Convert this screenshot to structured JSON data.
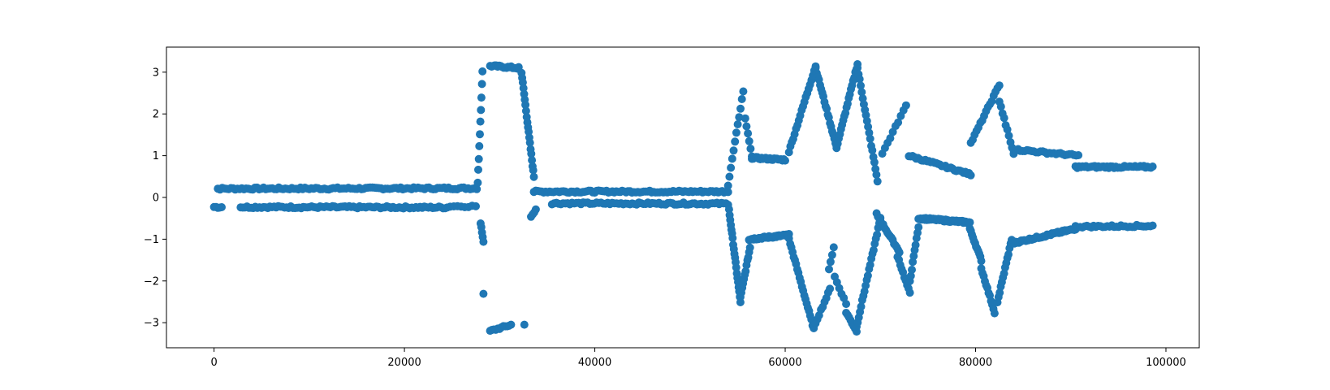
{
  "chart_data": {
    "type": "scatter",
    "title": "",
    "xlabel": "",
    "ylabel": "",
    "xlim": [
      -5000,
      103500
    ],
    "ylim": [
      -3.6,
      3.6
    ],
    "xticks": [
      0,
      20000,
      40000,
      60000,
      80000,
      100000
    ],
    "xtick_labels": [
      "0",
      "20000",
      "40000",
      "60000",
      "80000",
      "100000"
    ],
    "yticks": [
      3,
      2,
      1,
      0,
      -1,
      -2,
      -3
    ],
    "ytick_labels": [
      "3",
      "2",
      "1",
      "0",
      "−1",
      "−2",
      "−3"
    ],
    "grid": false,
    "legend": "none",
    "series": [
      {
        "color": "#1f77b4",
        "segments": [
          {
            "x0": 0,
            "x1": 800,
            "y0": -0.23,
            "y1": -0.23,
            "n": 5
          },
          {
            "x0": 400,
            "x1": 27600,
            "y0": 0.21,
            "y1": 0.22,
            "n": 120
          },
          {
            "x0": 2800,
            "x1": 24500,
            "y0": -0.23,
            "y1": -0.24,
            "n": 100
          },
          {
            "x0": 24800,
            "x1": 27500,
            "y0": -0.21,
            "y1": -0.21,
            "n": 8
          },
          {
            "x0": 27700,
            "x1": 28200,
            "y0": 0.35,
            "y1": 3.0,
            "n": 10
          },
          {
            "x0": 28000,
            "x1": 28300,
            "y0": -0.6,
            "y1": -1.05,
            "n": 5
          },
          {
            "x0": 28300,
            "x1": 28300,
            "y0": -2.32,
            "y1": -2.32,
            "n": 1
          },
          {
            "x0": 29000,
            "x1": 32000,
            "y0": 3.15,
            "y1": 3.1,
            "n": 20
          },
          {
            "x0": 29000,
            "x1": 31200,
            "y0": -3.2,
            "y1": -3.05,
            "n": 12
          },
          {
            "x0": 32600,
            "x1": 32600,
            "y0": -3.05,
            "y1": -3.05,
            "n": 1
          },
          {
            "x0": 32300,
            "x1": 33600,
            "y0": 3.0,
            "y1": 0.5,
            "n": 20
          },
          {
            "x0": 33300,
            "x1": 33800,
            "y0": -0.45,
            "y1": -0.28,
            "n": 4
          },
          {
            "x0": 33600,
            "x1": 54000,
            "y0": 0.14,
            "y1": 0.14,
            "n": 100
          },
          {
            "x0": 35500,
            "x1": 54000,
            "y0": -0.14,
            "y1": -0.15,
            "n": 80
          },
          {
            "x0": 54000,
            "x1": 55600,
            "y0": 0.3,
            "y1": 2.55,
            "n": 12
          },
          {
            "x0": 54100,
            "x1": 55300,
            "y0": -0.3,
            "y1": -2.5,
            "n": 20
          },
          {
            "x0": 55300,
            "x1": 56300,
            "y0": -2.4,
            "y1": -1.2,
            "n": 12
          },
          {
            "x0": 55800,
            "x1": 56500,
            "y0": 1.9,
            "y1": 1.0,
            "n": 6
          },
          {
            "x0": 56200,
            "x1": 60400,
            "y0": -1.0,
            "y1": -0.9,
            "n": 45
          },
          {
            "x0": 56500,
            "x1": 60000,
            "y0": 0.95,
            "y1": 0.9,
            "n": 25
          },
          {
            "x0": 60400,
            "x1": 63200,
            "y0": 1.1,
            "y1": 3.15,
            "n": 20
          },
          {
            "x0": 63200,
            "x1": 65400,
            "y0": 3.1,
            "y1": 1.2,
            "n": 20
          },
          {
            "x0": 65400,
            "x1": 67600,
            "y0": 1.2,
            "y1": 3.2,
            "n": 20
          },
          {
            "x0": 67600,
            "x1": 69700,
            "y0": 3.1,
            "y1": 0.4,
            "n": 20
          },
          {
            "x0": 60400,
            "x1": 63000,
            "y0": -1.0,
            "y1": -3.15,
            "n": 22
          },
          {
            "x0": 63000,
            "x1": 64700,
            "y0": -3.1,
            "y1": -2.2,
            "n": 10
          },
          {
            "x0": 64600,
            "x1": 65100,
            "y0": -1.7,
            "y1": -1.2,
            "n": 4
          },
          {
            "x0": 65200,
            "x1": 66400,
            "y0": -1.9,
            "y1": -2.55,
            "n": 6
          },
          {
            "x0": 66400,
            "x1": 67500,
            "y0": -2.75,
            "y1": -3.2,
            "n": 8
          },
          {
            "x0": 67500,
            "x1": 70000,
            "y0": -3.1,
            "y1": -0.5,
            "n": 22
          },
          {
            "x0": 69600,
            "x1": 72000,
            "y0": -0.4,
            "y1": -1.3,
            "n": 18
          },
          {
            "x0": 70200,
            "x1": 72700,
            "y0": 1.05,
            "y1": 2.2,
            "n": 10
          },
          {
            "x0": 71800,
            "x1": 73100,
            "y0": -1.4,
            "y1": -2.3,
            "n": 10
          },
          {
            "x0": 73100,
            "x1": 74000,
            "y0": -2.0,
            "y1": -0.7,
            "n": 10
          },
          {
            "x0": 73000,
            "x1": 79500,
            "y0": 1.0,
            "y1": 0.55,
            "n": 35
          },
          {
            "x0": 74000,
            "x1": 79400,
            "y0": -0.5,
            "y1": -0.6,
            "n": 50
          },
          {
            "x0": 79400,
            "x1": 80600,
            "y0": -0.75,
            "y1": -1.5,
            "n": 12
          },
          {
            "x0": 80600,
            "x1": 82000,
            "y0": -1.7,
            "y1": -2.75,
            "n": 12
          },
          {
            "x0": 79500,
            "x1": 82500,
            "y0": 1.3,
            "y1": 2.7,
            "n": 16
          },
          {
            "x0": 82300,
            "x1": 83800,
            "y0": -2.5,
            "y1": -1.0,
            "n": 14
          },
          {
            "x0": 82500,
            "x1": 84000,
            "y0": 2.3,
            "y1": 1.05,
            "n": 10
          },
          {
            "x0": 83800,
            "x1": 90500,
            "y0": -1.1,
            "y1": -0.75,
            "n": 55
          },
          {
            "x0": 84000,
            "x1": 90800,
            "y0": 1.15,
            "y1": 1.0,
            "n": 30
          },
          {
            "x0": 90500,
            "x1": 98600,
            "y0": 0.73,
            "y1": 0.73,
            "n": 45
          },
          {
            "x0": 90500,
            "x1": 98600,
            "y0": -0.7,
            "y1": -0.68,
            "n": 35
          }
        ]
      }
    ]
  }
}
